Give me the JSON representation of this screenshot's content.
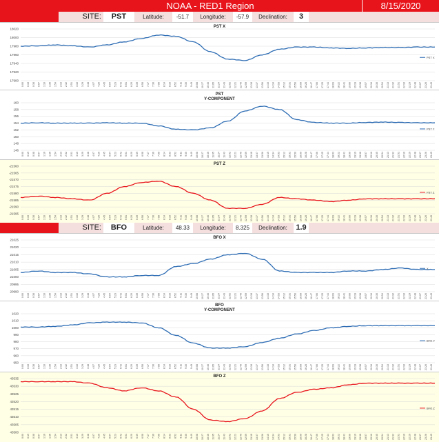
{
  "header": {
    "title": "NOAA - RED1 Region",
    "date": "8/15/2020",
    "accent": "#e8141c"
  },
  "sites": [
    {
      "site_label": "SITE:",
      "site": "PST",
      "lat_label": "Latitude:",
      "lat": "-51.7",
      "lon_label": "Longitude:",
      "lon": "-57.9",
      "dec_label": "Declination:",
      "dec": "3"
    },
    {
      "site_label": "SITE:",
      "site": "BFO",
      "lat_label": "Latitude:",
      "lat": "48.33",
      "lon_label": "Longitude:",
      "lon": "8.325",
      "dec_label": "Declination:",
      "dec": "1.9"
    }
  ],
  "chart_data": [
    {
      "type": "line",
      "title": "PST X",
      "title2": "",
      "legend": "PST X",
      "color": "#2e6db4",
      "background": "#ffffff",
      "yticks": [
        "18020",
        "18000",
        "17980",
        "17960",
        "17940",
        "17920",
        "17900"
      ],
      "ylim": [
        17900,
        18020
      ],
      "x": [
        0,
        1,
        2,
        3,
        4,
        5,
        6,
        7,
        8,
        9,
        10,
        11,
        12,
        13,
        14,
        15,
        16,
        17,
        18,
        19,
        20,
        21,
        22,
        23,
        24
      ],
      "values": [
        17980,
        17981,
        17983,
        17981,
        17978,
        17983,
        17990,
        17998,
        18006,
        18003,
        17990,
        17967,
        17950,
        17947,
        17960,
        17973,
        17978,
        17978,
        17976,
        17975,
        17976,
        17977,
        17977,
        17978,
        17978
      ]
    },
    {
      "type": "line",
      "title": "PST",
      "title2": "Y-COMPONENT",
      "legend": "PST Y",
      "color": "#2e6db4",
      "background": "#ffffff",
      "yticks": [
        "160",
        "158",
        "156",
        "154",
        "152",
        "150",
        "148",
        "146"
      ],
      "ylim": [
        146,
        160
      ],
      "x": [
        0,
        1,
        2,
        3,
        4,
        5,
        6,
        7,
        8,
        9,
        10,
        11,
        12,
        13,
        14,
        15,
        16,
        17,
        18,
        19,
        20,
        21,
        22,
        23,
        24
      ],
      "values": [
        154.0,
        154.1,
        154.0,
        154.0,
        154.0,
        154.1,
        154.0,
        154.0,
        153.2,
        152.2,
        152.0,
        152.6,
        154.6,
        157.6,
        159.0,
        158.0,
        155.0,
        154.2,
        154.0,
        154.0,
        154.2,
        154.3,
        154.2,
        154.1,
        154.1
      ]
    },
    {
      "type": "line",
      "title": "PST Z",
      "title2": "",
      "legend": "PST Z",
      "color": "#e8141c",
      "background": "#ffffe6",
      "yticks": [
        "-21560",
        "-21565",
        "-21570",
        "-21575",
        "-21580",
        "-21585",
        "-21590",
        "-21595"
      ],
      "ylim": [
        -21595,
        -21560
      ],
      "x": [
        0,
        1,
        2,
        3,
        4,
        5,
        6,
        7,
        8,
        9,
        10,
        11,
        12,
        13,
        14,
        15,
        16,
        17,
        18,
        19,
        20,
        21,
        22,
        23,
        24
      ],
      "values": [
        -21583,
        -21582,
        -21583,
        -21584,
        -21585,
        -21580,
        -21575,
        -21572,
        -21571,
        -21575,
        -21580,
        -21585,
        -21591,
        -21591,
        -21588,
        -21583,
        -21584,
        -21585,
        -21586,
        -21585,
        -21584,
        -21584,
        -21584,
        -21584,
        -21584
      ]
    },
    {
      "type": "line",
      "title": "BFO  X",
      "title2": "",
      "legend": "X",
      "color": "#2e6db4",
      "background": "#ffffff",
      "yticks": [
        "21025",
        "21020",
        "21015",
        "21010",
        "21005",
        "21000",
        "20995",
        "20990"
      ],
      "ylim": [
        20990,
        21025
      ],
      "x": [
        0,
        1,
        2,
        3,
        4,
        5,
        6,
        7,
        8,
        9,
        10,
        11,
        12,
        13,
        14,
        15,
        16,
        17,
        18,
        19,
        20,
        21,
        22,
        23,
        24
      ],
      "values": [
        21003,
        21004,
        21003,
        21003,
        21002,
        21000,
        21000,
        21001,
        21001,
        21007,
        21009,
        21012,
        21015,
        21016,
        21012,
        21004,
        21003,
        21003,
        21003,
        21004,
        21004,
        21005,
        21006,
        21005,
        21005
      ]
    },
    {
      "type": "line",
      "title": "BFO",
      "title2": "Y-COMPONENT",
      "legend": "BFO Y",
      "color": "#2e6db4",
      "background": "#ffffff",
      "yticks": [
        "1020",
        "1010",
        "1000",
        "990",
        "980",
        "970",
        "960",
        "950"
      ],
      "ylim": [
        950,
        1020
      ],
      "x": [
        0,
        1,
        2,
        3,
        4,
        5,
        6,
        7,
        8,
        9,
        10,
        11,
        12,
        13,
        14,
        15,
        16,
        17,
        18,
        19,
        20,
        21,
        22,
        23,
        24
      ],
      "values": [
        1001,
        1001,
        1002,
        1004,
        1007,
        1008,
        1008,
        1007,
        1000,
        989,
        978,
        971,
        971,
        973,
        979,
        985,
        991,
        996,
        1000,
        1002,
        1003,
        1003,
        1003,
        1003,
        1003
      ]
    },
    {
      "type": "line",
      "title": "BFO Z",
      "title2": "",
      "legend": "BFO Z",
      "color": "#e8141c",
      "background": "#ffffe6",
      "yticks": [
        "43535",
        "43530",
        "43525",
        "43520",
        "43515",
        "43510",
        "43505",
        "43500"
      ],
      "ylim": [
        43500,
        43535
      ],
      "x": [
        0,
        1,
        2,
        3,
        4,
        5,
        6,
        7,
        8,
        9,
        10,
        11,
        12,
        13,
        14,
        15,
        16,
        17,
        18,
        19,
        20,
        21,
        22,
        23,
        24
      ],
      "values": [
        43533,
        43533,
        43533,
        43533,
        43532,
        43529,
        43527,
        43529,
        43527,
        43523,
        43515,
        43508,
        43507,
        43509,
        43514,
        43522,
        43526,
        43528,
        43529,
        43531,
        43532,
        43532,
        43532,
        43532,
        43532
      ]
    }
  ],
  "xtick_labels": [
    "0:00",
    "0:19",
    "0:38",
    "0:57",
    "1:16",
    "1:35",
    "1:54",
    "2:13",
    "2:32",
    "2:51",
    "3:10",
    "3:29",
    "3:48",
    "4:07",
    "4:26",
    "4:45",
    "5:04",
    "5:23",
    "5:42",
    "6:01",
    "6:20",
    "6:39",
    "6:58",
    "7:17",
    "7:36",
    "7:55",
    "8:14",
    "8:33",
    "8:52",
    "9:11",
    "9:30",
    "9:49",
    "10:08",
    "10:27",
    "10:46",
    "11:05",
    "11:24",
    "11:43",
    "12:02",
    "12:21",
    "12:40",
    "12:59",
    "13:18",
    "13:37",
    "13:56",
    "14:15",
    "14:34",
    "14:53",
    "15:12",
    "15:31",
    "15:50",
    "16:09",
    "16:28",
    "16:47",
    "17:06",
    "17:25",
    "17:44",
    "18:03",
    "18:22",
    "18:41",
    "19:00",
    "19:19",
    "19:38",
    "19:57",
    "20:16",
    "20:35",
    "20:54",
    "21:13",
    "21:32",
    "21:51",
    "22:10",
    "22:29",
    "22:48",
    "23:07",
    "23:26",
    "23:45"
  ]
}
